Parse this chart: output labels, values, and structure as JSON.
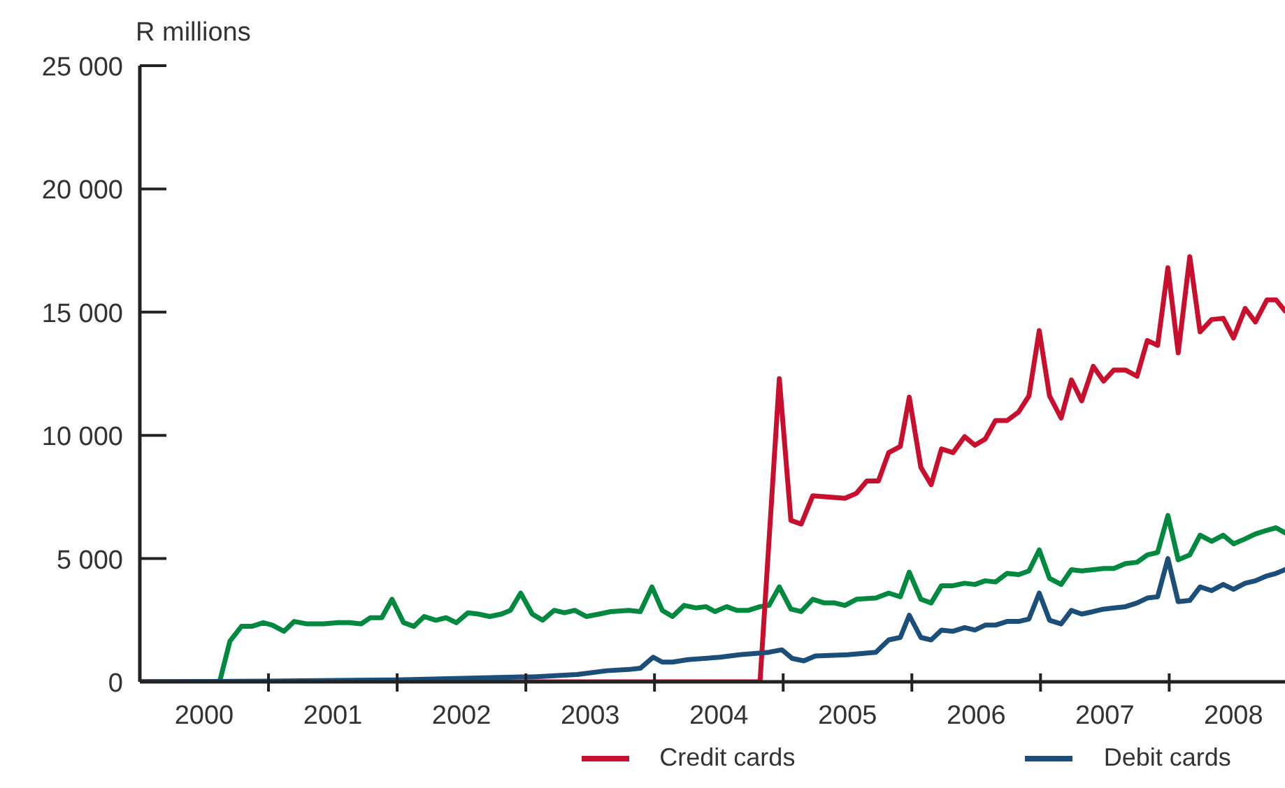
{
  "chart_data": {
    "type": "line",
    "ylabel": "R millions",
    "xlim": [
      2000,
      2008.9
    ],
    "xticks": [
      {
        "value": 2000.5,
        "label": "2000"
      },
      {
        "value": 2001,
        "label": null
      },
      {
        "value": 2001.5,
        "label": "2001"
      },
      {
        "value": 2002,
        "label": null
      },
      {
        "value": 2002.5,
        "label": "2002"
      },
      {
        "value": 2003,
        "label": null
      },
      {
        "value": 2003.5,
        "label": "2003"
      },
      {
        "value": 2004,
        "label": null
      },
      {
        "value": 2004.5,
        "label": "2004"
      },
      {
        "value": 2005,
        "label": null
      },
      {
        "value": 2005.5,
        "label": "2005"
      },
      {
        "value": 2006,
        "label": null
      },
      {
        "value": 2006.5,
        "label": "2006"
      },
      {
        "value": 2007,
        "label": null
      },
      {
        "value": 2007.5,
        "label": "2007"
      },
      {
        "value": 2008,
        "label": null
      },
      {
        "value": 2008.5,
        "label": "2008"
      }
    ],
    "ylim": [
      0,
      25000
    ],
    "yticks": [
      0,
      {
        "value": 5000,
        "label": "5 000"
      },
      {
        "value": 10000,
        "label": "10 000"
      },
      {
        "value": 15000,
        "label": "15 000"
      },
      {
        "value": 20000,
        "label": "20 000"
      },
      {
        "value": 25000,
        "label": "25 000"
      }
    ],
    "legend": "bottom",
    "line_style": "solid",
    "marker": "none",
    "series": [
      {
        "color": "#00893f",
        "x": [
          2000,
          2000.62,
          2000.7,
          2000.79,
          2000.87,
          2000.96,
          2001.03,
          2001.12,
          2001.2,
          2001.3,
          2001.43,
          2001.54,
          2001.63,
          2001.72,
          2001.79,
          2001.88,
          2001.96,
          2002.05,
          2002.13,
          2002.21,
          2002.3,
          2002.38,
          2002.46,
          2002.55,
          2002.63,
          2002.72,
          2002.81,
          2002.88,
          2002.96,
          2003.05,
          2003.13,
          2003.22,
          2003.3,
          2003.38,
          2003.47,
          2003.57,
          2003.66,
          2003.8,
          2003.89,
          2003.98,
          2004.06,
          2004.14,
          2004.23,
          2004.32,
          2004.4,
          2004.47,
          2004.56,
          2004.64,
          2004.73,
          2004.82,
          2004.89,
          2004.97,
          2005.06,
          2005.14,
          2005.23,
          2005.32,
          2005.4,
          2005.48,
          2005.57,
          2005.72,
          2005.82,
          2005.91,
          2005.98,
          2006.07,
          2006.15,
          2006.23,
          2006.32,
          2006.41,
          2006.49,
          2006.57,
          2006.65,
          2006.74,
          2006.83,
          2006.91,
          2006.99,
          2007.07,
          2007.16,
          2007.24,
          2007.32,
          2007.41,
          2007.49,
          2007.57,
          2007.66,
          2007.75,
          2007.83,
          2007.91,
          2007.99,
          2008.07,
          2008.16,
          2008.24,
          2008.33,
          2008.42,
          2008.5,
          2008.59,
          2008.67,
          2008.76,
          2008.83,
          2008.9
        ],
        "values": [
          0,
          0,
          1650,
          2250,
          2250,
          2400,
          2300,
          2050,
          2450,
          2350,
          2350,
          2400,
          2400,
          2350,
          2600,
          2600,
          3350,
          2400,
          2250,
          2650,
          2500,
          2600,
          2400,
          2800,
          2750,
          2650,
          2750,
          2900,
          3600,
          2750,
          2500,
          2900,
          2800,
          2900,
          2650,
          2750,
          2850,
          2900,
          2850,
          3850,
          2900,
          2650,
          3100,
          3000,
          3050,
          2850,
          3050,
          2900,
          2900,
          3050,
          3100,
          3850,
          2950,
          2850,
          3350,
          3200,
          3200,
          3100,
          3350,
          3400,
          3600,
          3450,
          4450,
          3350,
          3200,
          3900,
          3900,
          4000,
          3950,
          4100,
          4050,
          4400,
          4350,
          4500,
          5350,
          4200,
          3950,
          4550,
          4500,
          4550,
          4600,
          4600,
          4800,
          4850,
          5150,
          5250,
          6750,
          4950,
          5150,
          5950,
          5700,
          5950,
          5600,
          5800,
          6000,
          6150,
          6250,
          6050
        ]
      },
      {
        "name": "Credit cards",
        "color": "#c8102e",
        "x": [
          2000,
          2004.82,
          2004.97,
          2005.06,
          2005.14,
          2005.23,
          2005.48,
          2005.57,
          2005.65,
          2005.74,
          2005.82,
          2005.91,
          2005.98,
          2006.07,
          2006.15,
          2006.23,
          2006.32,
          2006.41,
          2006.49,
          2006.57,
          2006.65,
          2006.74,
          2006.83,
          2006.91,
          2006.99,
          2007.07,
          2007.16,
          2007.24,
          2007.32,
          2007.41,
          2007.49,
          2007.57,
          2007.66,
          2007.75,
          2007.83,
          2007.91,
          2007.99,
          2008.07,
          2008.16,
          2008.24,
          2008.33,
          2008.42,
          2008.5,
          2008.59,
          2008.67,
          2008.76,
          2008.83,
          2008.9
        ],
        "values": [
          0,
          0,
          12300,
          6550,
          6400,
          7550,
          7450,
          7650,
          8150,
          8150,
          9300,
          9550,
          11550,
          8700,
          8000,
          9450,
          9300,
          9950,
          9600,
          9850,
          10600,
          10600,
          10950,
          11600,
          14250,
          11600,
          10700,
          12250,
          11400,
          12800,
          12200,
          12650,
          12650,
          12400,
          13850,
          13650,
          16800,
          13350,
          17250,
          14200,
          14700,
          14750,
          13950,
          15150,
          14600,
          15500,
          15500,
          15050
        ]
      },
      {
        "name": "Debit cards",
        "color": "#1b4f7a",
        "x": [
          2000,
          2001,
          2002,
          2002.96,
          2003.05,
          2003.4,
          2003.63,
          2003.8,
          2003.89,
          2003.99,
          2004.06,
          2004.14,
          2004.26,
          2004.51,
          2004.66,
          2004.89,
          2004.99,
          2005.07,
          2005.16,
          2005.25,
          2005.5,
          2005.72,
          2005.82,
          2005.91,
          2005.98,
          2006.07,
          2006.15,
          2006.23,
          2006.32,
          2006.41,
          2006.49,
          2006.57,
          2006.65,
          2006.74,
          2006.83,
          2006.91,
          2006.99,
          2007.07,
          2007.16,
          2007.24,
          2007.32,
          2007.41,
          2007.49,
          2007.57,
          2007.66,
          2007.75,
          2007.83,
          2007.91,
          2007.99,
          2008.07,
          2008.16,
          2008.24,
          2008.33,
          2008.42,
          2008.5,
          2008.59,
          2008.67,
          2008.76,
          2008.83,
          2008.9
        ],
        "values": [
          0,
          30,
          80,
          200,
          200,
          300,
          450,
          500,
          550,
          1000,
          800,
          800,
          900,
          1000,
          1100,
          1200,
          1300,
          950,
          850,
          1050,
          1100,
          1200,
          1700,
          1800,
          2700,
          1800,
          1700,
          2100,
          2050,
          2200,
          2100,
          2300,
          2300,
          2450,
          2450,
          2550,
          3600,
          2500,
          2350,
          2900,
          2750,
          2850,
          2950,
          3000,
          3050,
          3200,
          3400,
          3450,
          5000,
          3250,
          3300,
          3850,
          3700,
          3950,
          3750,
          4000,
          4100,
          4300,
          4400,
          4550
        ]
      }
    ]
  }
}
